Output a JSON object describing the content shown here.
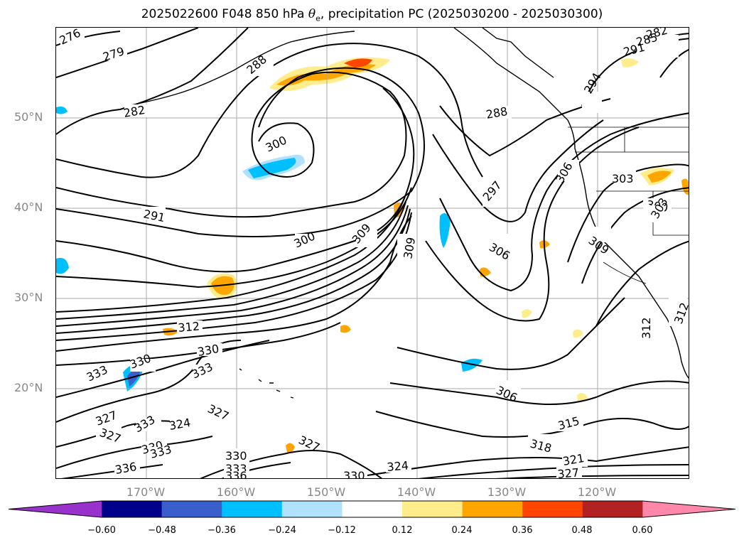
{
  "title": {
    "prefix": "2025022600 F048 850 hPa ",
    "symbol": "θ",
    "subscript": "e",
    "suffix": ", precipitation PC (2025030200 - 2025030300)"
  },
  "map": {
    "projection": "lat-lon",
    "lon_range": [
      -180,
      -110
    ],
    "lat_range": [
      10,
      60
    ],
    "grid": true,
    "lat_labels": [
      "50°N",
      "40°N",
      "30°N",
      "20°N"
    ],
    "lon_labels": [
      "170°W",
      "160°W",
      "150°W",
      "140°W",
      "130°W",
      "120°W"
    ],
    "contour_variable": "850 hPa theta-e (K)",
    "contour_labels": [
      "276",
      "279",
      "282",
      "285",
      "288",
      "291",
      "294",
      "297",
      "300",
      "303",
      "306",
      "309",
      "312",
      "315",
      "318",
      "321",
      "324",
      "327",
      "330",
      "333",
      "336"
    ],
    "contour_color": "#000000",
    "coastline_color": "#000000"
  },
  "colorbar": {
    "ticks": [
      "−0.60",
      "−0.48",
      "−0.36",
      "−0.24",
      "−0.12",
      "0.12",
      "0.24",
      "0.36",
      "0.48",
      "0.60"
    ],
    "extend": "both",
    "colors": [
      "#9932cc",
      "#00008b",
      "#3a5fcd",
      "#00bfff",
      "#b0e2ff",
      "#ffffff",
      "#ffec8b",
      "#ffa500",
      "#ff4500",
      "#b22222",
      "#ff88aa"
    ]
  }
}
